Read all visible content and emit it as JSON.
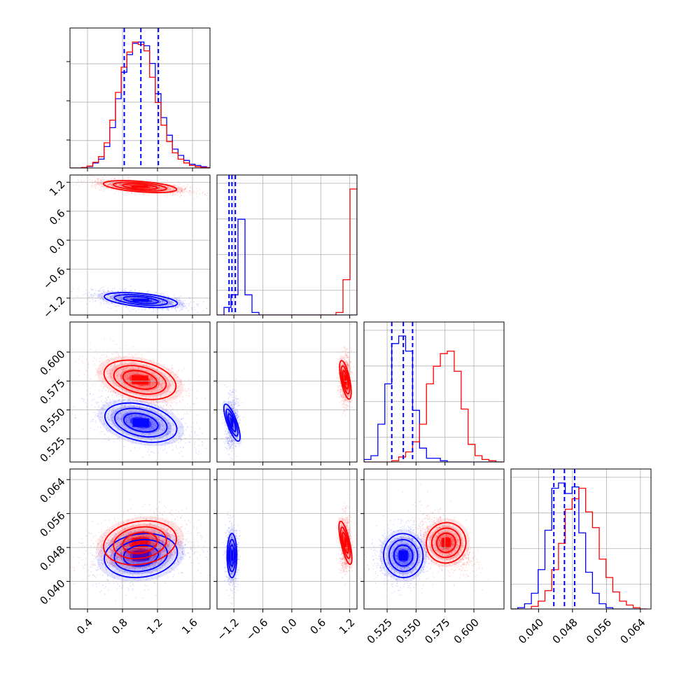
{
  "chart_data": {
    "type": "corner",
    "parameters": 4,
    "colors": {
      "series_a": "#0000ff",
      "series_b": "#ff0000"
    },
    "grid": true,
    "legend": "none",
    "axes": [
      {
        "range": [
          0.2,
          1.8
        ],
        "ticks": [
          0.4,
          0.8,
          1.2,
          1.6
        ],
        "tick_labels": [
          "0.4",
          "0.8",
          "1.2",
          "1.6"
        ]
      },
      {
        "range": [
          -1.55,
          1.35
        ],
        "ticks": [
          -1.2,
          -0.6,
          0.0,
          0.6,
          1.2
        ],
        "tick_labels": [
          "−1.2",
          "−0.6",
          "0.0",
          "0.6",
          "1.2"
        ]
      },
      {
        "range": [
          0.505,
          0.626
        ],
        "ticks": [
          0.525,
          0.55,
          0.575,
          0.6
        ],
        "tick_labels": [
          "0.525",
          "0.550",
          "0.575",
          "0.600"
        ]
      },
      {
        "range": [
          0.0335,
          0.0665
        ],
        "ticks": [
          0.04,
          0.048,
          0.056,
          0.064
        ],
        "tick_labels": [
          "0.040",
          "0.048",
          "0.056",
          "0.064"
        ]
      }
    ],
    "quantile_lines": [
      [
        0.82,
        1.01,
        1.21
      ],
      [
        -1.3,
        -1.24,
        -1.17
      ],
      [
        0.529,
        0.539,
        0.547
      ],
      [
        0.0436,
        0.0461,
        0.0485
      ]
    ],
    "marginals": [
      {
        "edges": [
          0.2,
          0.265,
          0.33,
          0.395,
          0.46,
          0.525,
          0.59,
          0.655,
          0.72,
          0.785,
          0.85,
          0.915,
          0.98,
          1.045,
          1.11,
          1.175,
          1.24,
          1.305,
          1.37,
          1.435,
          1.5,
          1.565,
          1.63,
          1.695,
          1.76,
          1.825
        ],
        "series_a": [
          0,
          0,
          0.003,
          0.012,
          0.04,
          0.07,
          0.17,
          0.32,
          0.55,
          0.76,
          0.9,
          0.99,
          1.0,
          0.97,
          0.83,
          0.59,
          0.4,
          0.26,
          0.15,
          0.1,
          0.06,
          0.03,
          0.02,
          0.01,
          0.003
        ],
        "series_b": [
          0,
          0,
          0.003,
          0.015,
          0.045,
          0.09,
          0.2,
          0.38,
          0.6,
          0.8,
          0.92,
          1.0,
          0.98,
          0.93,
          0.72,
          0.52,
          0.34,
          0.21,
          0.12,
          0.07,
          0.04,
          0.02,
          0.01,
          0.005,
          0.002
        ]
      },
      {
        "edges": [
          -1.55,
          -1.405,
          -1.26,
          -1.115,
          -0.97,
          -0.825,
          -0.68,
          -0.535,
          -0.39,
          -0.245,
          -0.1,
          0.045,
          0.19,
          0.335,
          0.48,
          0.625,
          0.77,
          0.915,
          1.06,
          1.205,
          1.35
        ],
        "series_a": [
          0,
          0.06,
          0.16,
          0.76,
          0.16,
          0.02,
          0,
          0,
          0,
          0,
          0,
          0,
          0,
          0,
          0,
          0,
          0,
          0,
          0,
          0
        ],
        "series_b": [
          0,
          0,
          0,
          0,
          0,
          0,
          0,
          0,
          0,
          0,
          0,
          0,
          0,
          0,
          0,
          0,
          0,
          0.02,
          0.28,
          1.0
        ]
      },
      {
        "edges": [
          0.505,
          0.511,
          0.517,
          0.523,
          0.529,
          0.535,
          0.541,
          0.547,
          0.553,
          0.559,
          0.565,
          0.571,
          0.577,
          0.583,
          0.589,
          0.595,
          0.601,
          0.607,
          0.613,
          0.619,
          0.625
        ],
        "series_a": [
          0.02,
          0.05,
          0.3,
          0.62,
          0.94,
          1.0,
          0.88,
          0.41,
          0.11,
          0.03,
          0.03,
          0.01,
          0,
          0,
          0,
          0,
          0,
          0,
          0,
          0
        ],
        "series_b": [
          0,
          0,
          0,
          0,
          0.01,
          0.04,
          0.08,
          0.16,
          0.3,
          0.62,
          0.76,
          0.86,
          0.88,
          0.72,
          0.42,
          0.14,
          0.05,
          0.02,
          0.01,
          0
        ],
        "series_a_step": {
          "start": 0.505,
          "width": 0.006
        },
        "series_b_step": {
          "start": 0.505,
          "width": 0.006
        }
      },
      {
        "edges": [
          0.0335,
          0.0351,
          0.0367,
          0.0383,
          0.0399,
          0.0415,
          0.0431,
          0.0447,
          0.0463,
          0.0479,
          0.0495,
          0.0511,
          0.0527,
          0.0543,
          0.0559,
          0.0575,
          0.0591,
          0.0607,
          0.0623,
          0.0639,
          0.0655
        ],
        "series_a": [
          0,
          0.01,
          0.04,
          0.12,
          0.3,
          0.6,
          0.92,
          0.96,
          0.88,
          0.93,
          0.58,
          0.28,
          0.12,
          0.04,
          0.01,
          0,
          0,
          0,
          0,
          0
        ],
        "series_b": [
          0,
          0,
          0,
          0.02,
          0.06,
          0.14,
          0.3,
          0.5,
          0.76,
          0.84,
          0.92,
          0.74,
          0.62,
          0.38,
          0.24,
          0.13,
          0.06,
          0.03,
          0.01,
          0
        ]
      }
    ],
    "blobs": [
      {
        "row": 1,
        "col": 0,
        "series_a": {
          "mean": [
            1.01,
            -1.24
          ],
          "sd": [
            0.21,
            0.075
          ],
          "corr": -0.55,
          "n": 1200
        },
        "series_b": {
          "mean": [
            1.0,
            1.11
          ],
          "sd": [
            0.21,
            0.06
          ],
          "corr": -0.55,
          "n": 1200
        }
      },
      {
        "row": 2,
        "col": 0,
        "series_a": {
          "mean": [
            1.01,
            0.539
          ],
          "sd": [
            0.21,
            0.0085
          ],
          "corr": -0.5,
          "n": 1200
        },
        "series_b": {
          "mean": [
            1.0,
            0.576
          ],
          "sd": [
            0.21,
            0.0085
          ],
          "corr": -0.5,
          "n": 1200
        }
      },
      {
        "row": 2,
        "col": 1,
        "series_a": {
          "mean": [
            -1.24,
            0.539
          ],
          "sd": [
            0.05,
            0.0085
          ],
          "corr": 0.1,
          "n": 900
        },
        "series_b": {
          "mean": [
            1.11,
            0.576
          ],
          "sd": [
            0.045,
            0.0085
          ],
          "corr": 0.05,
          "n": 900
        }
      },
      {
        "row": 3,
        "col": 0,
        "series_a": {
          "mean": [
            1.01,
            0.0461
          ],
          "sd": [
            0.21,
            0.0026
          ],
          "corr": 0.25,
          "n": 1200
        },
        "series_b": {
          "mean": [
            1.0,
            0.0491
          ],
          "sd": [
            0.21,
            0.0026
          ],
          "corr": 0.3,
          "n": 1200
        }
      },
      {
        "row": 3,
        "col": 1,
        "series_a": {
          "mean": [
            -1.24,
            0.0461
          ],
          "sd": [
            0.05,
            0.0026
          ],
          "corr": 0.0,
          "n": 900
        },
        "series_b": {
          "mean": [
            1.11,
            0.0491
          ],
          "sd": [
            0.045,
            0.0026
          ],
          "corr": 0.05,
          "n": 900
        }
      },
      {
        "row": 3,
        "col": 2,
        "series_a": {
          "mean": [
            0.539,
            0.0461
          ],
          "sd": [
            0.0085,
            0.0026
          ],
          "corr": 0.1,
          "n": 1200
        },
        "series_b": {
          "mean": [
            0.576,
            0.0491
          ],
          "sd": [
            0.0085,
            0.0026
          ],
          "corr": -0.5,
          "n": 1200
        }
      }
    ]
  }
}
